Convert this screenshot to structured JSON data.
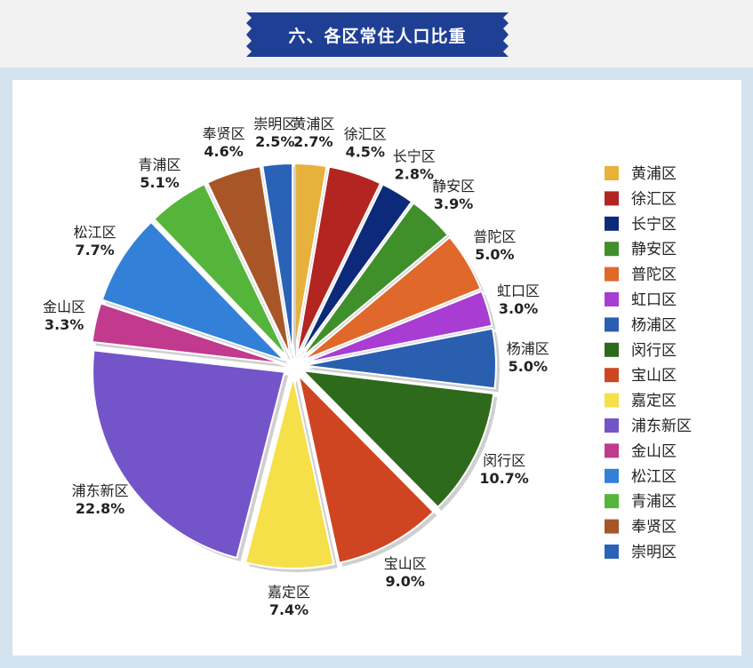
{
  "header": {
    "title": "六、各区常住人口比重"
  },
  "chart_data": {
    "type": "pie",
    "title": "六、各区常住人口比重",
    "legend_position": "right",
    "slices": [
      {
        "name": "黄浦区",
        "value": 2.7,
        "label": "2.7%",
        "color": "#e6b23c"
      },
      {
        "name": "徐汇区",
        "value": 4.5,
        "label": "4.5%",
        "color": "#b32520"
      },
      {
        "name": "长宁区",
        "value": 2.8,
        "label": "2.8%",
        "color": "#0d2a7a"
      },
      {
        "name": "静安区",
        "value": 3.9,
        "label": "3.9%",
        "color": "#3f8f2b"
      },
      {
        "name": "普陀区",
        "value": 5.0,
        "label": "5.0%",
        "color": "#e0682b"
      },
      {
        "name": "虹口区",
        "value": 3.0,
        "label": "3.0%",
        "color": "#a83cd3"
      },
      {
        "name": "杨浦区",
        "value": 5.0,
        "label": "5.0%",
        "color": "#2a5fb0"
      },
      {
        "name": "闵行区",
        "value": 10.7,
        "label": "10.7%",
        "color": "#2e6a1c"
      },
      {
        "name": "宝山区",
        "value": 9.0,
        "label": "9.0%",
        "color": "#cf4521"
      },
      {
        "name": "嘉定区",
        "value": 7.4,
        "label": "7.4%",
        "color": "#f5e04a"
      },
      {
        "name": "浦东新区",
        "value": 22.8,
        "label": "22.8%",
        "color": "#7454c9"
      },
      {
        "name": "金山区",
        "value": 3.3,
        "label": "3.3%",
        "color": "#c13a8d"
      },
      {
        "name": "松江区",
        "value": 7.7,
        "label": "7.7%",
        "color": "#3380d8"
      },
      {
        "name": "青浦区",
        "value": 5.1,
        "label": "5.1%",
        "color": "#55b53b"
      },
      {
        "name": "奉贤区",
        "value": 4.6,
        "label": "4.6%",
        "color": "#a85628"
      },
      {
        "name": "崇明区",
        "value": 2.5,
        "label": "2.5%",
        "color": "#2a62b8"
      }
    ]
  }
}
